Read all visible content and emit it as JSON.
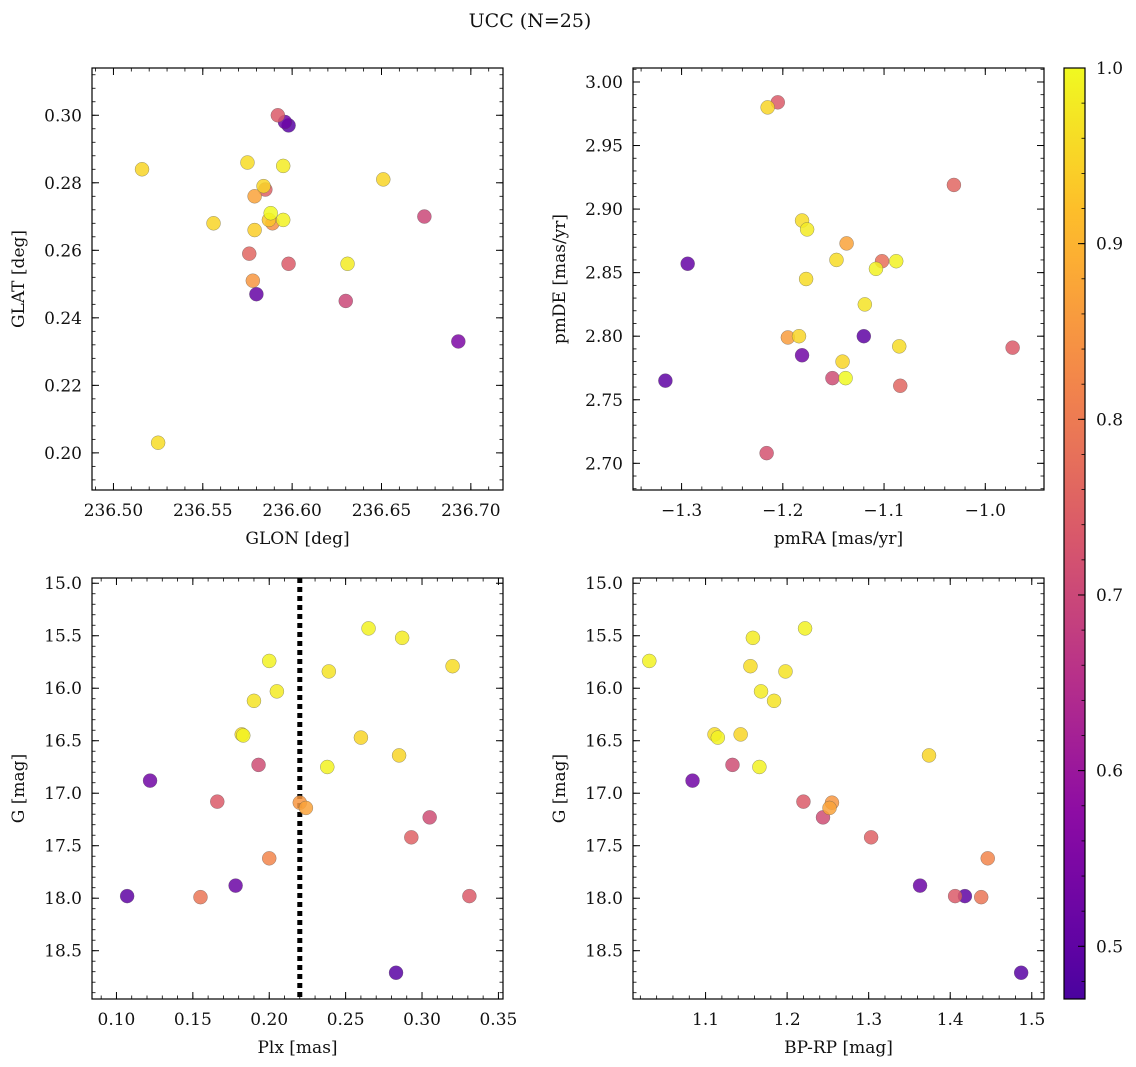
{
  "figure": {
    "title": "UCC (N=25)"
  },
  "colorbar": {
    "cmap": "plasma",
    "min": 0.47,
    "max": 1.0,
    "ticks": [
      "0.5",
      "0.6",
      "0.7",
      "0.8",
      "0.9",
      "1.0"
    ],
    "tick_values": [
      0.5,
      0.6,
      0.7,
      0.8,
      0.9,
      1.0
    ]
  },
  "chart_data": [
    {
      "type": "scatter",
      "id": "glon-glat",
      "xlabel": "GLON [deg]",
      "ylabel": "GLAT [deg]",
      "xlim": [
        236.488,
        236.718
      ],
      "ylim": [
        0.189,
        0.314
      ],
      "y_inverted": false,
      "xticks": [
        236.5,
        236.55,
        236.6,
        236.65,
        236.7
      ],
      "xtick_labels": [
        "236.50",
        "236.55",
        "236.60",
        "236.65",
        "236.70"
      ],
      "yticks": [
        0.2,
        0.22,
        0.24,
        0.26,
        0.28,
        0.3
      ],
      "ytick_labels": [
        "0.20",
        "0.22",
        "0.24",
        "0.26",
        "0.28",
        "0.30"
      ],
      "points": [
        {
          "x": 236.516,
          "y": 0.284,
          "c": 0.95
        },
        {
          "x": 236.556,
          "y": 0.268,
          "c": 0.95
        },
        {
          "x": 236.525,
          "y": 0.203,
          "c": 0.96
        },
        {
          "x": 236.575,
          "y": 0.286,
          "c": 0.96
        },
        {
          "x": 236.579,
          "y": 0.276,
          "c": 0.87
        },
        {
          "x": 236.585,
          "y": 0.278,
          "c": 0.75
        },
        {
          "x": 236.584,
          "y": 0.279,
          "c": 0.95
        },
        {
          "x": 236.592,
          "y": 0.3,
          "c": 0.74
        },
        {
          "x": 236.596,
          "y": 0.298,
          "c": 0.52
        },
        {
          "x": 236.598,
          "y": 0.297,
          "c": 0.49
        },
        {
          "x": 236.595,
          "y": 0.285,
          "c": 0.98
        },
        {
          "x": 236.587,
          "y": 0.269,
          "c": 0.93
        },
        {
          "x": 236.589,
          "y": 0.268,
          "c": 0.84
        },
        {
          "x": 236.588,
          "y": 0.271,
          "c": 1.0
        },
        {
          "x": 236.595,
          "y": 0.269,
          "c": 0.99
        },
        {
          "x": 236.579,
          "y": 0.266,
          "c": 0.94
        },
        {
          "x": 236.576,
          "y": 0.259,
          "c": 0.76
        },
        {
          "x": 236.578,
          "y": 0.251,
          "c": 0.85
        },
        {
          "x": 236.58,
          "y": 0.247,
          "c": 0.51
        },
        {
          "x": 236.598,
          "y": 0.256,
          "c": 0.74
        },
        {
          "x": 236.631,
          "y": 0.256,
          "c": 0.98
        },
        {
          "x": 236.63,
          "y": 0.245,
          "c": 0.7
        },
        {
          "x": 236.651,
          "y": 0.281,
          "c": 0.95
        },
        {
          "x": 236.674,
          "y": 0.27,
          "c": 0.7
        },
        {
          "x": 236.693,
          "y": 0.233,
          "c": 0.55
        }
      ]
    },
    {
      "type": "scatter",
      "id": "pmra-pmde",
      "xlabel": "pmRA [mas/yr]",
      "ylabel": "pmDE [mas/yr]",
      "xlim": [
        -1.348,
        -0.942
      ],
      "ylim": [
        2.679,
        3.011
      ],
      "y_inverted": false,
      "xticks": [
        -1.3,
        -1.2,
        -1.1,
        -1.0
      ],
      "xtick_labels": [
        "−1.3",
        "−1.2",
        "−1.1",
        "−1.0"
      ],
      "yticks": [
        2.7,
        2.75,
        2.8,
        2.85,
        2.9,
        2.95,
        3.0
      ],
      "ytick_labels": [
        "2.70",
        "2.75",
        "2.80",
        "2.85",
        "2.90",
        "2.95",
        "3.00"
      ],
      "points": [
        {
          "x": -1.215,
          "y": 2.98,
          "c": 0.95
        },
        {
          "x": -1.205,
          "y": 2.984,
          "c": 0.74
        },
        {
          "x": -1.031,
          "y": 2.919,
          "c": 0.76
        },
        {
          "x": -1.181,
          "y": 2.891,
          "c": 0.96
        },
        {
          "x": -1.176,
          "y": 2.884,
          "c": 0.98
        },
        {
          "x": -1.137,
          "y": 2.873,
          "c": 0.87
        },
        {
          "x": -1.102,
          "y": 2.859,
          "c": 0.78
        },
        {
          "x": -1.088,
          "y": 2.859,
          "c": 0.99
        },
        {
          "x": -1.147,
          "y": 2.86,
          "c": 0.96
        },
        {
          "x": -1.108,
          "y": 2.853,
          "c": 0.99
        },
        {
          "x": -1.294,
          "y": 2.857,
          "c": 0.51
        },
        {
          "x": -1.177,
          "y": 2.845,
          "c": 0.96
        },
        {
          "x": -1.119,
          "y": 2.825,
          "c": 0.97
        },
        {
          "x": -1.195,
          "y": 2.799,
          "c": 0.86
        },
        {
          "x": -1.184,
          "y": 2.8,
          "c": 0.95
        },
        {
          "x": -1.12,
          "y": 2.8,
          "c": 0.5
        },
        {
          "x": -1.085,
          "y": 2.792,
          "c": 0.96
        },
        {
          "x": -0.973,
          "y": 2.791,
          "c": 0.74
        },
        {
          "x": -1.181,
          "y": 2.785,
          "c": 0.53
        },
        {
          "x": -1.141,
          "y": 2.78,
          "c": 0.95
        },
        {
          "x": -1.138,
          "y": 2.767,
          "c": 1.0
        },
        {
          "x": -1.151,
          "y": 2.767,
          "c": 0.71
        },
        {
          "x": -1.084,
          "y": 2.761,
          "c": 0.76
        },
        {
          "x": -1.316,
          "y": 2.765,
          "c": 0.5
        },
        {
          "x": -1.216,
          "y": 2.708,
          "c": 0.72
        }
      ]
    },
    {
      "type": "scatter",
      "id": "plx-g",
      "xlabel": "Plx [mas]",
      "ylabel": "G [mag]",
      "xlim": [
        0.084,
        0.353
      ],
      "ylim": [
        18.96,
        14.95
      ],
      "y_inverted": true,
      "vline": {
        "x": 0.22,
        "style": "dotted"
      },
      "xticks": [
        0.1,
        0.15,
        0.2,
        0.25,
        0.3,
        0.35
      ],
      "xtick_labels": [
        "0.10",
        "0.15",
        "0.20",
        "0.25",
        "0.30",
        "0.35"
      ],
      "yticks": [
        15.0,
        15.5,
        16.0,
        16.5,
        17.0,
        17.5,
        18.0,
        18.5
      ],
      "ytick_labels": [
        "15.0",
        "15.5",
        "16.0",
        "16.5",
        "17.0",
        "17.5",
        "18.0",
        "18.5"
      ],
      "points": [
        {
          "x": 0.265,
          "y": 15.43,
          "c": 0.99
        },
        {
          "x": 0.287,
          "y": 15.52,
          "c": 0.98
        },
        {
          "x": 0.2,
          "y": 15.74,
          "c": 0.99
        },
        {
          "x": 0.32,
          "y": 15.79,
          "c": 0.96
        },
        {
          "x": 0.239,
          "y": 15.84,
          "c": 0.97
        },
        {
          "x": 0.205,
          "y": 16.03,
          "c": 0.98
        },
        {
          "x": 0.19,
          "y": 16.12,
          "c": 0.97
        },
        {
          "x": 0.182,
          "y": 16.44,
          "c": 0.96
        },
        {
          "x": 0.183,
          "y": 16.45,
          "c": 0.99
        },
        {
          "x": 0.26,
          "y": 16.47,
          "c": 0.95
        },
        {
          "x": 0.193,
          "y": 16.73,
          "c": 0.71
        },
        {
          "x": 0.238,
          "y": 16.75,
          "c": 0.99
        },
        {
          "x": 0.285,
          "y": 16.64,
          "c": 0.95
        },
        {
          "x": 0.122,
          "y": 16.88,
          "c": 0.53
        },
        {
          "x": 0.166,
          "y": 17.08,
          "c": 0.74
        },
        {
          "x": 0.22,
          "y": 17.09,
          "c": 0.85
        },
        {
          "x": 0.224,
          "y": 17.14,
          "c": 0.87
        },
        {
          "x": 0.305,
          "y": 17.23,
          "c": 0.71
        },
        {
          "x": 0.293,
          "y": 17.42,
          "c": 0.75
        },
        {
          "x": 0.2,
          "y": 17.62,
          "c": 0.82
        },
        {
          "x": 0.178,
          "y": 17.88,
          "c": 0.52
        },
        {
          "x": 0.107,
          "y": 17.98,
          "c": 0.5
        },
        {
          "x": 0.155,
          "y": 17.99,
          "c": 0.79
        },
        {
          "x": 0.331,
          "y": 17.98,
          "c": 0.74
        },
        {
          "x": 0.283,
          "y": 18.71,
          "c": 0.49
        }
      ]
    },
    {
      "type": "scatter",
      "id": "bprp-g",
      "xlabel": "BP-RP [mag]",
      "ylabel": "G [mag]",
      "xlim": [
        1.011,
        1.515
      ],
      "ylim": [
        18.96,
        14.95
      ],
      "y_inverted": true,
      "xticks": [
        1.1,
        1.2,
        1.3,
        1.4,
        1.5
      ],
      "xtick_labels": [
        "1.1",
        "1.2",
        "1.3",
        "1.4",
        "1.5"
      ],
      "yticks": [
        15.0,
        15.5,
        16.0,
        16.5,
        17.0,
        17.5,
        18.0,
        18.5
      ],
      "ytick_labels": [
        "15.0",
        "15.5",
        "16.0",
        "16.5",
        "17.0",
        "17.5",
        "18.0",
        "18.5"
      ],
      "points": [
        {
          "x": 1.222,
          "y": 15.43,
          "c": 0.99
        },
        {
          "x": 1.158,
          "y": 15.52,
          "c": 0.98
        },
        {
          "x": 1.031,
          "y": 15.74,
          "c": 0.99
        },
        {
          "x": 1.155,
          "y": 15.79,
          "c": 0.96
        },
        {
          "x": 1.198,
          "y": 15.84,
          "c": 0.97
        },
        {
          "x": 1.168,
          "y": 16.03,
          "c": 0.98
        },
        {
          "x": 1.184,
          "y": 16.12,
          "c": 0.97
        },
        {
          "x": 1.111,
          "y": 16.44,
          "c": 0.96
        },
        {
          "x": 1.115,
          "y": 16.47,
          "c": 0.99
        },
        {
          "x": 1.143,
          "y": 16.44,
          "c": 0.95
        },
        {
          "x": 1.133,
          "y": 16.73,
          "c": 0.71
        },
        {
          "x": 1.166,
          "y": 16.75,
          "c": 0.99
        },
        {
          "x": 1.374,
          "y": 16.64,
          "c": 0.95
        },
        {
          "x": 1.084,
          "y": 16.88,
          "c": 0.53
        },
        {
          "x": 1.22,
          "y": 17.08,
          "c": 0.74
        },
        {
          "x": 1.255,
          "y": 17.09,
          "c": 0.85
        },
        {
          "x": 1.252,
          "y": 17.14,
          "c": 0.87
        },
        {
          "x": 1.244,
          "y": 17.23,
          "c": 0.71
        },
        {
          "x": 1.303,
          "y": 17.42,
          "c": 0.75
        },
        {
          "x": 1.446,
          "y": 17.62,
          "c": 0.82
        },
        {
          "x": 1.363,
          "y": 17.88,
          "c": 0.52
        },
        {
          "x": 1.418,
          "y": 17.98,
          "c": 0.5
        },
        {
          "x": 1.438,
          "y": 17.99,
          "c": 0.79
        },
        {
          "x": 1.406,
          "y": 17.98,
          "c": 0.74
        },
        {
          "x": 1.487,
          "y": 18.71,
          "c": 0.49
        }
      ]
    }
  ]
}
